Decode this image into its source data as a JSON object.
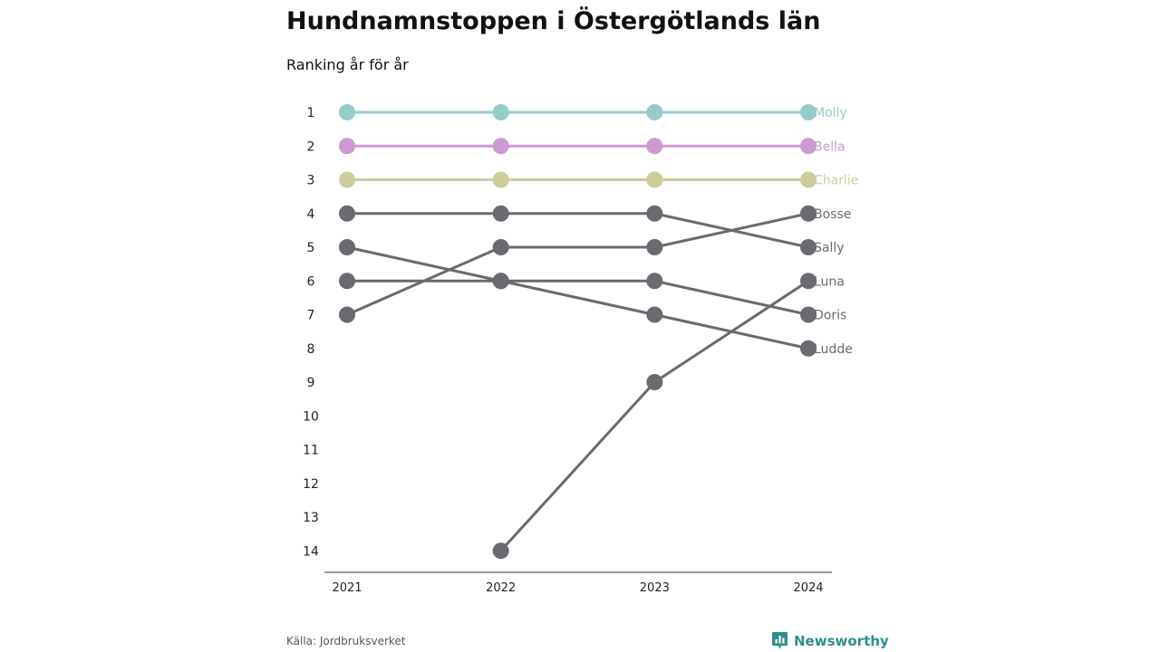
{
  "title": "Hundnamnstoppen i Östergötlands län",
  "subtitle": "Ranking år för år",
  "source": "Källa: Jordbruksverket",
  "brand": {
    "name": "Newsworthy",
    "icon": "newsworthy-logo-icon",
    "color": "#2a8f8a"
  },
  "chart_data": {
    "type": "line",
    "chart_kind": "bump",
    "x": [
      "2021",
      "2022",
      "2023",
      "2024"
    ],
    "y_ticks": [
      "1",
      "2",
      "3",
      "4",
      "5",
      "6",
      "7",
      "8",
      "9",
      "10",
      "11",
      "12",
      "13",
      "14"
    ],
    "ylim": [
      1,
      14
    ],
    "y_inverted": true,
    "grid": false,
    "series": [
      {
        "name": "Molly",
        "values": [
          1,
          1,
          1,
          1
        ],
        "color": "#96cbcc",
        "highlight": true
      },
      {
        "name": "Bella",
        "values": [
          2,
          2,
          2,
          2
        ],
        "color": "#cc99d2",
        "highlight": true
      },
      {
        "name": "Charlie",
        "values": [
          3,
          3,
          3,
          3
        ],
        "color": "#cdcc9a",
        "highlight": true
      },
      {
        "name": "Bosse",
        "values": [
          7,
          5,
          5,
          4
        ],
        "color": "#6b6a70",
        "highlight": false
      },
      {
        "name": "Sally",
        "values": [
          4,
          4,
          4,
          5
        ],
        "color": "#6b6a70",
        "highlight": false
      },
      {
        "name": "Luna",
        "values": [
          null,
          14,
          9,
          6
        ],
        "color": "#6b6a70",
        "highlight": false
      },
      {
        "name": "Doris",
        "values": [
          6,
          6,
          6,
          7
        ],
        "color": "#6b6a70",
        "highlight": false
      },
      {
        "name": "Ludde",
        "values": [
          5,
          6,
          7,
          8
        ],
        "color": "#6b6a70",
        "highlight": false
      }
    ]
  }
}
